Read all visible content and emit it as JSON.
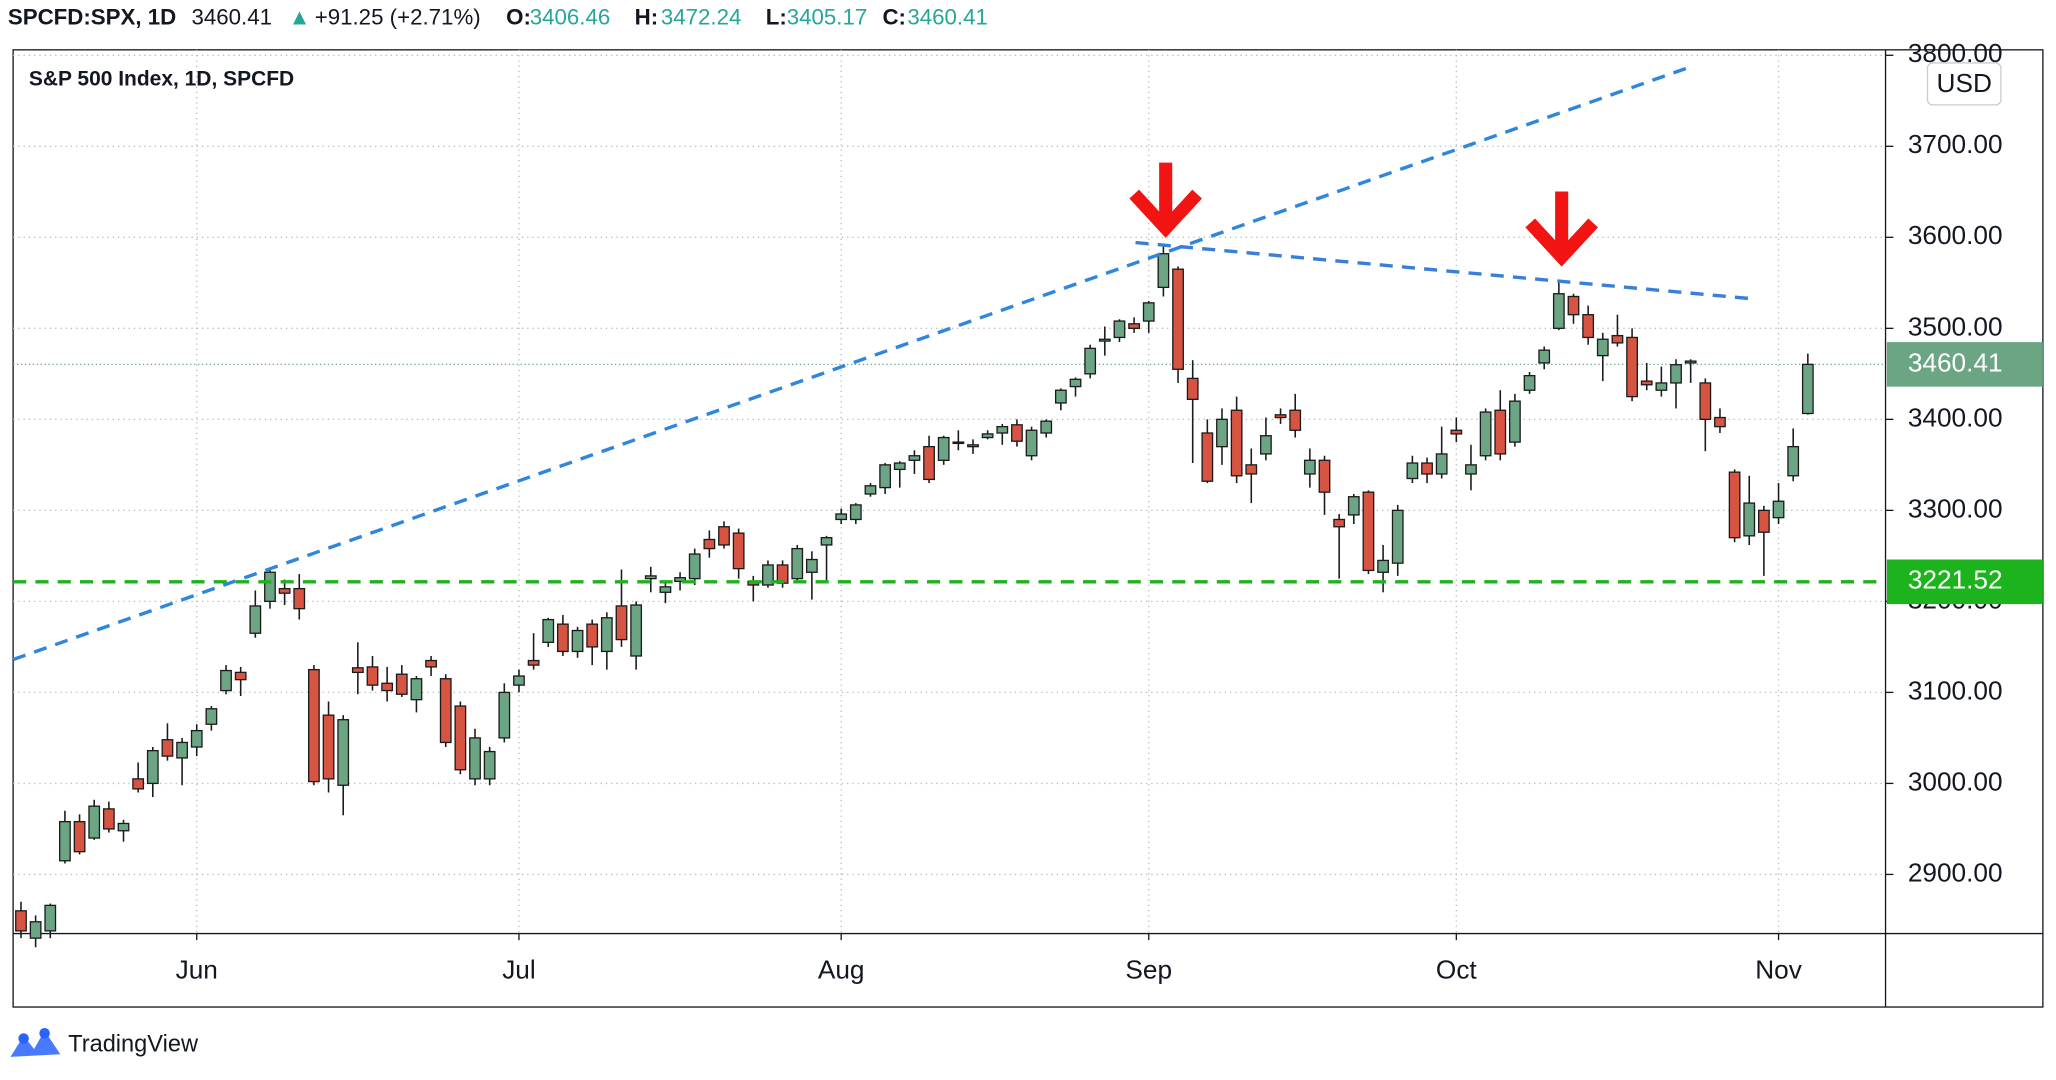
{
  "header": {
    "symbol": "SPCFD:SPX, 1D",
    "arrow": "▲",
    "change": "+91.25 (+2.71%)",
    "labels": [
      "O:",
      "H:",
      "L:",
      "C:"
    ]
  },
  "footer": {
    "brand": "TradingView"
  },
  "chart_data": {
    "type": "candlestick",
    "title": "S&P 500 Index, 1D, SPCFD",
    "currency": "USD",
    "up_color": "#6ba583",
    "down_color": "#d75442",
    "grid": true,
    "ylim": [
      2835,
      3806
    ],
    "yticks": [
      {
        "value": 2900,
        "label": "2900.00"
      },
      {
        "value": 3000,
        "label": "3000.00"
      },
      {
        "value": 3100,
        "label": "3100.00"
      },
      {
        "value": 3200,
        "label": "3200.00"
      },
      {
        "value": 3300,
        "label": "3300.00"
      },
      {
        "value": 3400,
        "label": "3400.00"
      },
      {
        "value": 3500,
        "label": "3500.00"
      },
      {
        "value": 3600,
        "label": "3600.00"
      },
      {
        "value": 3700,
        "label": "3700.00"
      },
      {
        "value": 3800,
        "label": "3800.00"
      }
    ],
    "hline": {
      "value": 3221.52,
      "color": "#1db31d"
    },
    "categories": [
      null,
      null,
      null,
      null,
      null,
      null,
      null,
      null,
      null,
      null,
      null,
      null,
      "Jun",
      null,
      null,
      null,
      null,
      null,
      null,
      null,
      null,
      null,
      null,
      null,
      null,
      null,
      null,
      null,
      null,
      null,
      null,
      null,
      null,
      null,
      "Jul",
      null,
      null,
      null,
      null,
      null,
      null,
      null,
      null,
      null,
      null,
      null,
      null,
      null,
      null,
      null,
      null,
      null,
      null,
      null,
      null,
      null,
      "Aug",
      null,
      null,
      null,
      null,
      null,
      null,
      null,
      null,
      null,
      null,
      null,
      null,
      null,
      null,
      null,
      null,
      null,
      null,
      null,
      null,
      "Sep",
      null,
      null,
      null,
      null,
      null,
      null,
      null,
      null,
      null,
      null,
      null,
      null,
      null,
      null,
      null,
      null,
      null,
      null,
      null,
      null,
      "Oct",
      null,
      null,
      null,
      null,
      null,
      null,
      null,
      null,
      null,
      null,
      null,
      null,
      null,
      null,
      null,
      null,
      null,
      null,
      null,
      null,
      null,
      "Nov",
      null,
      null
    ],
    "open": [
      2860,
      2830,
      2838,
      2915,
      2958,
      2940,
      2972,
      2948,
      3005,
      3000,
      3048,
      3028,
      3040,
      3065,
      3102,
      3122,
      3165,
      3200,
      3214,
      3214,
      3125,
      3075,
      2998,
      3127,
      3128,
      3110,
      3120,
      3092,
      3135,
      3115,
      3085,
      3005,
      3005,
      3050,
      3108,
      3135,
      3155,
      3175,
      3145,
      3175,
      3145,
      3195,
      3140,
      3225,
      3210,
      3222,
      3225,
      3268,
      3282,
      3275,
      3222,
      3218,
      3240,
      3225,
      3232,
      3262,
      3290,
      3290,
      3318,
      3325,
      3345,
      3355,
      3370,
      3355,
      3375,
      3370,
      3380,
      3385,
      3394,
      3360,
      3385,
      3418,
      3436,
      3450,
      3486,
      3490,
      3505,
      3508,
      3545,
      3565,
      3445,
      3385,
      3370,
      3410,
      3350,
      3362,
      3405,
      3410,
      3340,
      3355,
      3290,
      3295,
      3320,
      3232,
      3242,
      3335,
      3352,
      3340,
      3388,
      3340,
      3360,
      3410,
      3375,
      3432,
      3462,
      3500,
      3535,
      3515,
      3470,
      3492,
      3490,
      3442,
      3432,
      3440,
      3462,
      3440,
      3402,
      3342,
      3272,
      3300,
      3292,
      3338,
      3406.46
    ],
    "high": [
      2870,
      2855,
      2868,
      2970,
      2966,
      2982,
      2980,
      2960,
      3023,
      3040,
      3066,
      3050,
      3065,
      3085,
      3130,
      3128,
      3212,
      3234,
      3224,
      3230,
      3130,
      3090,
      3075,
      3155,
      3140,
      3128,
      3130,
      3118,
      3140,
      3120,
      3090,
      3060,
      3040,
      3110,
      3125,
      3165,
      3182,
      3185,
      3172,
      3180,
      3188,
      3235,
      3200,
      3238,
      3222,
      3232,
      3258,
      3278,
      3288,
      3280,
      3228,
      3245,
      3245,
      3262,
      3255,
      3272,
      3302,
      3308,
      3330,
      3352,
      3354,
      3366,
      3382,
      3382,
      3388,
      3378,
      3388,
      3395,
      3400,
      3392,
      3400,
      3434,
      3446,
      3482,
      3502,
      3510,
      3512,
      3530,
      3590,
      3568,
      3465,
      3400,
      3412,
      3425,
      3368,
      3402,
      3412,
      3428,
      3368,
      3360,
      3296,
      3318,
      3322,
      3262,
      3306,
      3360,
      3358,
      3392,
      3402,
      3372,
      3412,
      3432,
      3428,
      3452,
      3480,
      3550,
      3538,
      3525,
      3495,
      3515,
      3500,
      3462,
      3458,
      3466,
      3466,
      3445,
      3412,
      3345,
      3338,
      3305,
      3330,
      3390,
      3472.24
    ],
    "low": [
      2830,
      2820,
      2830,
      2912,
      2922,
      2938,
      2946,
      2936,
      2990,
      2985,
      3025,
      2998,
      3030,
      3058,
      3098,
      3096,
      3160,
      3192,
      3196,
      3180,
      2998,
      2990,
      2965,
      3098,
      3102,
      3090,
      3095,
      3078,
      3118,
      3040,
      3010,
      2998,
      2998,
      3045,
      3100,
      3125,
      3150,
      3140,
      3138,
      3130,
      3125,
      3150,
      3125,
      3210,
      3198,
      3212,
      3218,
      3248,
      3258,
      3225,
      3200,
      3215,
      3215,
      3222,
      3202,
      3222,
      3285,
      3285,
      3315,
      3318,
      3325,
      3340,
      3330,
      3350,
      3366,
      3362,
      3378,
      3372,
      3370,
      3355,
      3380,
      3410,
      3425,
      3445,
      3470,
      3485,
      3495,
      3495,
      3535,
      3440,
      3352,
      3330,
      3350,
      3330,
      3308,
      3355,
      3395,
      3380,
      3325,
      3295,
      3225,
      3285,
      3230,
      3210,
      3228,
      3330,
      3330,
      3335,
      3375,
      3322,
      3355,
      3355,
      3370,
      3428,
      3455,
      3498,
      3505,
      3482,
      3442,
      3480,
      3420,
      3432,
      3425,
      3412,
      3440,
      3365,
      3385,
      3265,
      3262,
      3228,
      3285,
      3332,
      3405.17
    ],
    "close": [
      2838,
      2848,
      2866,
      2958,
      2925,
      2975,
      2950,
      2956,
      2994,
      3036,
      3030,
      3045,
      3058,
      3082,
      3124,
      3114,
      3195,
      3232,
      3209,
      3192,
      3002,
      3005,
      3070,
      3122,
      3108,
      3102,
      3098,
      3115,
      3128,
      3045,
      3015,
      3050,
      3035,
      3100,
      3118,
      3130,
      3180,
      3145,
      3168,
      3150,
      3182,
      3158,
      3196,
      3228,
      3216,
      3226,
      3252,
      3258,
      3262,
      3236,
      3218,
      3240,
      3220,
      3258,
      3246,
      3270,
      3296,
      3306,
      3327,
      3350,
      3352,
      3360,
      3334,
      3380,
      3374,
      3372,
      3384,
      3392,
      3376,
      3388,
      3398,
      3432,
      3444,
      3478,
      3488,
      3508,
      3500,
      3528,
      3582,
      3455,
      3422,
      3332,
      3400,
      3338,
      3340,
      3382,
      3402,
      3388,
      3355,
      3320,
      3282,
      3315,
      3234,
      3245,
      3300,
      3352,
      3340,
      3362,
      3384,
      3350,
      3408,
      3362,
      3420,
      3448,
      3476,
      3538,
      3515,
      3490,
      3488,
      3484,
      3425,
      3438,
      3440,
      3460,
      3464,
      3400,
      3392,
      3270,
      3308,
      3276,
      3310,
      3370,
      3460.41
    ]
  }
}
